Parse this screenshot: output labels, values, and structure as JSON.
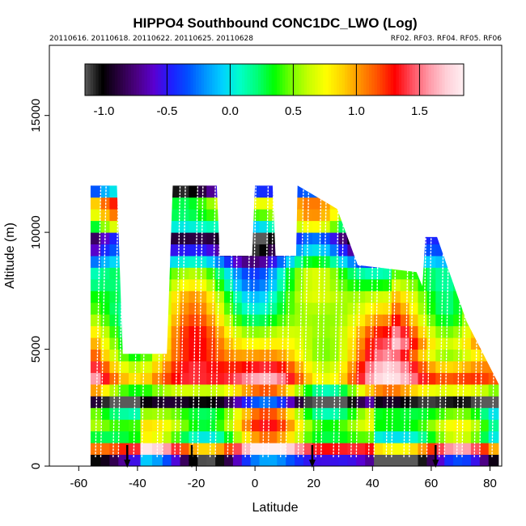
{
  "chart_data": {
    "type": "heatmap",
    "title": "HIPPO4 Southbound CONC1DC_LWO (Log)",
    "subtitle_left": "20110616. 20110618. 20110622. 20110625. 20110628",
    "subtitle_right": "RF02. RF03. RF04. RF05. RF06",
    "xlabel": "Latitude",
    "ylabel": "Altitude (m)",
    "xlim": [
      -70,
      84
    ],
    "ylim": [
      0,
      18000
    ],
    "xticks": [
      -60,
      -40,
      -20,
      0,
      20,
      40,
      60,
      80
    ],
    "yticks": [
      0,
      5000,
      10000,
      15000
    ],
    "colorbar": {
      "range": [
        -1.15,
        1.85
      ],
      "ticks": [
        -1.0,
        -0.5,
        0.0,
        0.5,
        1.0,
        1.5
      ],
      "tick_labels": [
        "-1.0",
        "-0.5",
        "0.0",
        "0.5",
        "1.0",
        "1.5"
      ],
      "colors": [
        "#5a5a5a",
        "#000000",
        "#2a0040",
        "#4b0082",
        "#5a00d0",
        "#1e1eff",
        "#0050ff",
        "#0096ff",
        "#00d2ff",
        "#00ffc8",
        "#00ff78",
        "#00ff00",
        "#78ff00",
        "#c8ff00",
        "#ffff00",
        "#ffd000",
        "#ff9000",
        "#ff5000",
        "#ff0000",
        "#ff5060",
        "#ff9aa8",
        "#ffd0d8",
        "#fff0f2"
      ]
    },
    "envelope": [
      {
        "lat": -56.0,
        "top": 12000
      },
      {
        "lat": -47.0,
        "top": 12000
      },
      {
        "lat": -45.0,
        "top": 4800
      },
      {
        "lat": -30.0,
        "top": 4800
      },
      {
        "lat": -28.0,
        "top": 12000
      },
      {
        "lat": -13.0,
        "top": 12000
      },
      {
        "lat": -12.0,
        "top": 9000
      },
      {
        "lat": -1.0,
        "top": 9000
      },
      {
        "lat": 0.0,
        "top": 12000
      },
      {
        "lat": 6.0,
        "top": 12000
      },
      {
        "lat": 7.0,
        "top": 9000
      },
      {
        "lat": 14.0,
        "top": 9000
      },
      {
        "lat": 14.5,
        "top": 12000
      },
      {
        "lat": 28.0,
        "top": 11000
      },
      {
        "lat": 35.0,
        "top": 8600
      },
      {
        "lat": 55.0,
        "top": 8300
      },
      {
        "lat": 57.0,
        "top": 7700
      },
      {
        "lat": 58.0,
        "top": 9800
      },
      {
        "lat": 62.0,
        "top": 9800
      },
      {
        "lat": 72.0,
        "top": 6200
      },
      {
        "lat": 83.0,
        "top": 3500
      }
    ],
    "profile_levels": [
      {
        "alt": 250,
        "value": -0.55
      },
      {
        "alt": 750,
        "value": 1.45
      },
      {
        "alt": 1250,
        "value": 0.55
      },
      {
        "alt": 1750,
        "value": 0.75
      },
      {
        "alt": 2250,
        "value": 0.6
      },
      {
        "alt": 2750,
        "value": -0.8
      },
      {
        "alt": 3250,
        "value": 0.7
      },
      {
        "alt": 3750,
        "value": 1.3
      },
      {
        "alt": 4250,
        "value": 1.15
      },
      {
        "alt": 4750,
        "value": 0.95
      },
      {
        "alt": 5250,
        "value": 0.85
      },
      {
        "alt": 5750,
        "value": 0.75
      },
      {
        "alt": 6250,
        "value": 0.6
      },
      {
        "alt": 6750,
        "value": 0.5
      },
      {
        "alt": 7250,
        "value": 0.45
      },
      {
        "alt": 7750,
        "value": 0.3
      },
      {
        "alt": 8250,
        "value": 0.2
      },
      {
        "alt": 8750,
        "value": -0.2
      },
      {
        "alt": 9250,
        "value": -0.6
      },
      {
        "alt": 9750,
        "value": -0.85
      },
      {
        "alt": 10250,
        "value": 0.2
      },
      {
        "alt": 10750,
        "value": 0.55
      },
      {
        "alt": 11250,
        "value": 0.7
      },
      {
        "alt": 11750,
        "value": -0.55
      }
    ],
    "profile_latitudes": [
      -54,
      -51,
      -48,
      -45,
      -41,
      -37,
      -33,
      -30,
      -27,
      -24,
      -21,
      -18,
      -15,
      -12,
      -9,
      -6,
      -3,
      0,
      3,
      6,
      9,
      12,
      15,
      18,
      21,
      24,
      27,
      30,
      33,
      36,
      39,
      42,
      45,
      48,
      51,
      54,
      57,
      60,
      63,
      66,
      69,
      72,
      75,
      78,
      81
    ],
    "flight_markers_lat": [
      -43.5,
      -21.5,
      19.5,
      61.5
    ]
  }
}
